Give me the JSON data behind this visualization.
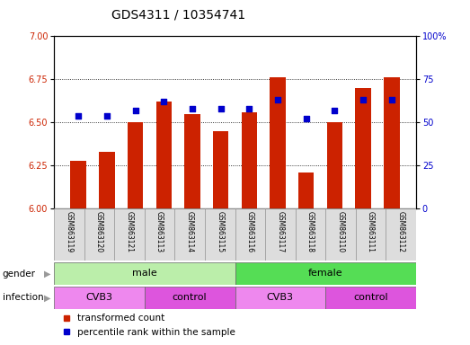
{
  "title": "GDS4311 / 10354741",
  "samples": [
    "GSM863119",
    "GSM863120",
    "GSM863121",
    "GSM863113",
    "GSM863114",
    "GSM863115",
    "GSM863116",
    "GSM863117",
    "GSM863118",
    "GSM863110",
    "GSM863111",
    "GSM863112"
  ],
  "transformed_count": [
    6.28,
    6.33,
    6.5,
    6.62,
    6.55,
    6.45,
    6.56,
    6.76,
    6.21,
    6.5,
    6.7,
    6.76
  ],
  "percentile_rank": [
    54,
    54,
    57,
    62,
    58,
    58,
    58,
    63,
    52,
    57,
    63,
    63
  ],
  "ylim_left": [
    6.0,
    7.0
  ],
  "ylim_right": [
    0,
    100
  ],
  "yticks_left": [
    6.0,
    6.25,
    6.5,
    6.75,
    7.0
  ],
  "yticks_right": [
    0,
    25,
    50,
    75,
    100
  ],
  "bar_color": "#CC2200",
  "dot_color": "#0000CC",
  "gender_groups": [
    {
      "label": "male",
      "start": 0,
      "end": 6,
      "color": "#BBEEAA"
    },
    {
      "label": "female",
      "start": 6,
      "end": 12,
      "color": "#55DD55"
    }
  ],
  "infection_groups": [
    {
      "label": "CVB3",
      "start": 0,
      "end": 3,
      "color": "#EE88EE"
    },
    {
      "label": "control",
      "start": 3,
      "end": 6,
      "color": "#DD55DD"
    },
    {
      "label": "CVB3",
      "start": 6,
      "end": 9,
      "color": "#EE88EE"
    },
    {
      "label": "control",
      "start": 9,
      "end": 12,
      "color": "#DD55DD"
    }
  ],
  "legend_labels": [
    "transformed count",
    "percentile rank within the sample"
  ],
  "legend_colors": [
    "#CC2200",
    "#0000CC"
  ],
  "ylabel_left_color": "#CC2200",
  "ylabel_right_color": "#0000CC",
  "tick_label_fontsize": 7,
  "title_fontsize": 10,
  "bar_width": 0.55,
  "dot_size": 20,
  "grid_linestyle": ":"
}
